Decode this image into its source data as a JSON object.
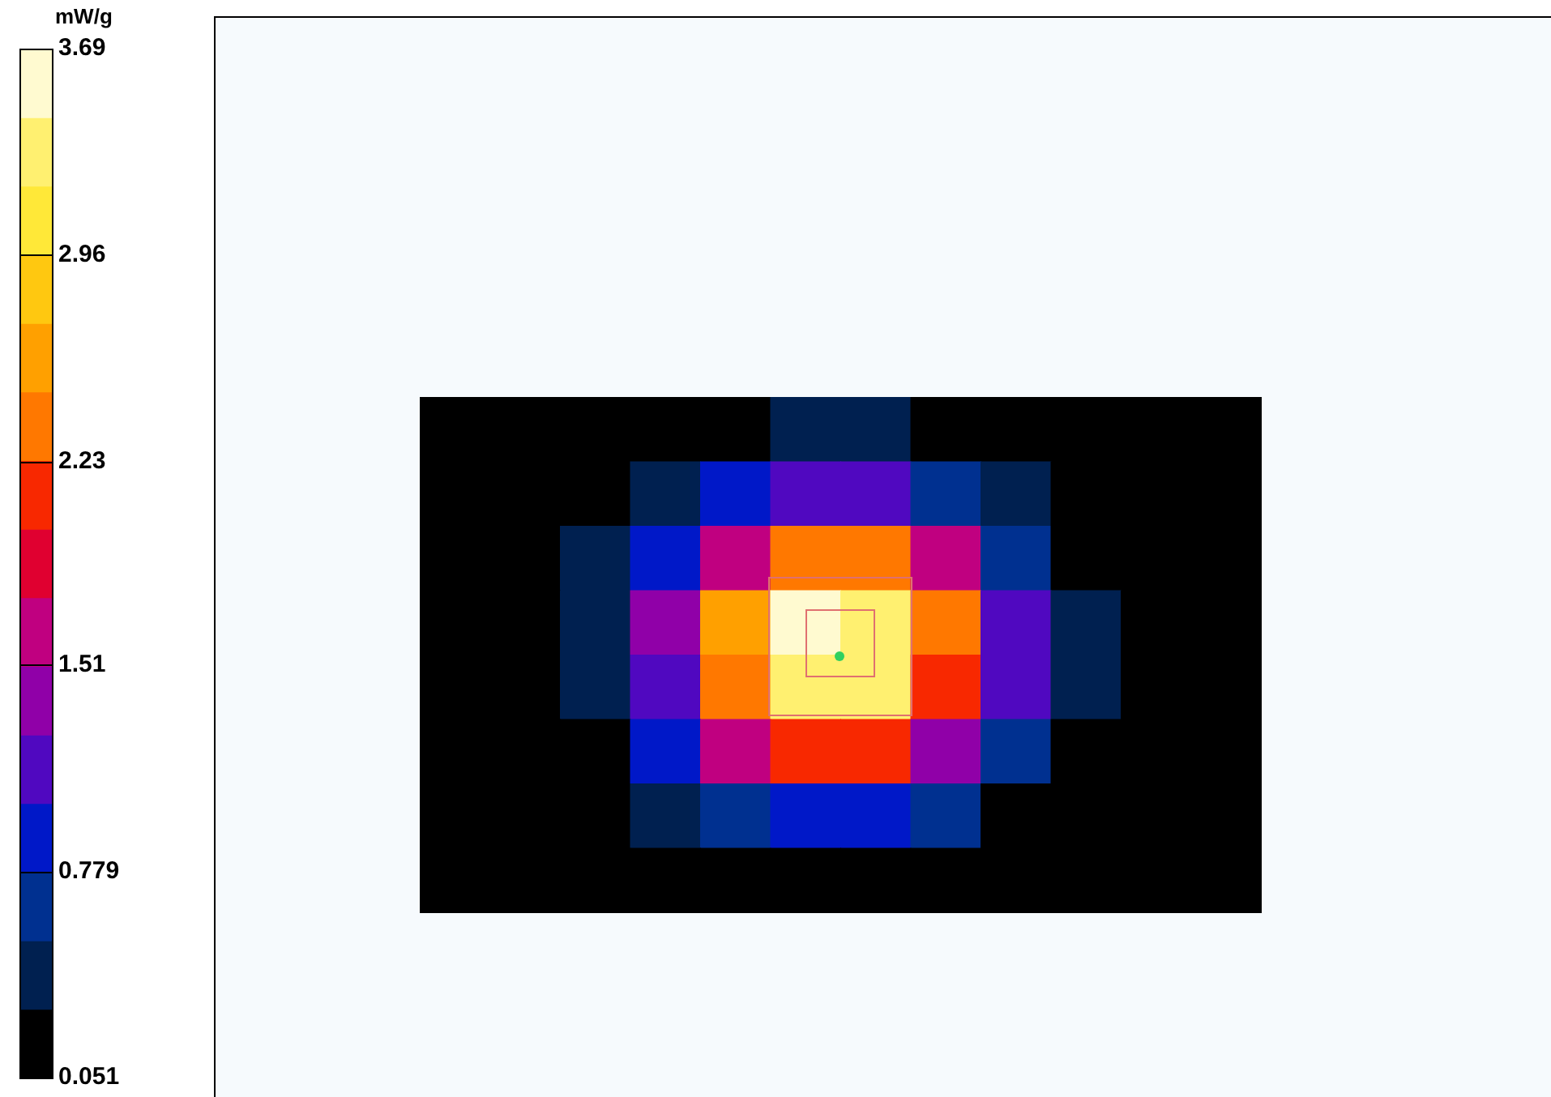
{
  "chart_data": {
    "type": "heatmap",
    "clabel": "mW/g",
    "clim": [
      0.051,
      3.69
    ],
    "cticks": [
      0.051,
      0.779,
      1.51,
      2.23,
      2.96,
      3.69
    ],
    "categories": [
      null,
      null,
      null,
      null,
      null,
      null,
      null,
      null,
      null,
      null,
      null,
      null
    ],
    "y_categories": [
      null,
      null,
      null,
      null,
      null,
      null,
      null,
      null
    ],
    "cells": [
      [
        0.051,
        0.051,
        0.051,
        0.051,
        0.051,
        0.34,
        0.33,
        0.23,
        0.051,
        0.051,
        0.051,
        0.051
      ],
      [
        0.051,
        0.051,
        0.051,
        0.42,
        0.81,
        1.11,
        1.08,
        0.74,
        0.36,
        0.051,
        0.051,
        0.051
      ],
      [
        0.051,
        0.051,
        0.32,
        0.91,
        1.74,
        2.39,
        2.32,
        1.59,
        0.77,
        0.27,
        0.051,
        0.051
      ],
      [
        0.051,
        0.051,
        0.47,
        1.31,
        2.53,
        3.46,
        3.37,
        2.3,
        1.12,
        0.39,
        0.051,
        0.051
      ],
      [
        0.051,
        0.051,
        0.45,
        1.26,
        2.43,
        3.32,
        3.23,
        2.21,
        1.07,
        0.37,
        0.051,
        0.051
      ],
      [
        0.051,
        0.051,
        0.29,
        0.82,
        1.57,
        2.15,
        2.09,
        1.43,
        0.69,
        0.051,
        0.051,
        0.051
      ],
      [
        0.051,
        0.051,
        0.051,
        0.35,
        0.66,
        0.91,
        0.88,
        0.6,
        0.29,
        0.051,
        0.051,
        0.051
      ],
      [
        0.051,
        0.051,
        0.051,
        0.051,
        0.051,
        0.26,
        0.25,
        0.051,
        0.051,
        0.051,
        0.051,
        0.051
      ]
    ]
  }
}
